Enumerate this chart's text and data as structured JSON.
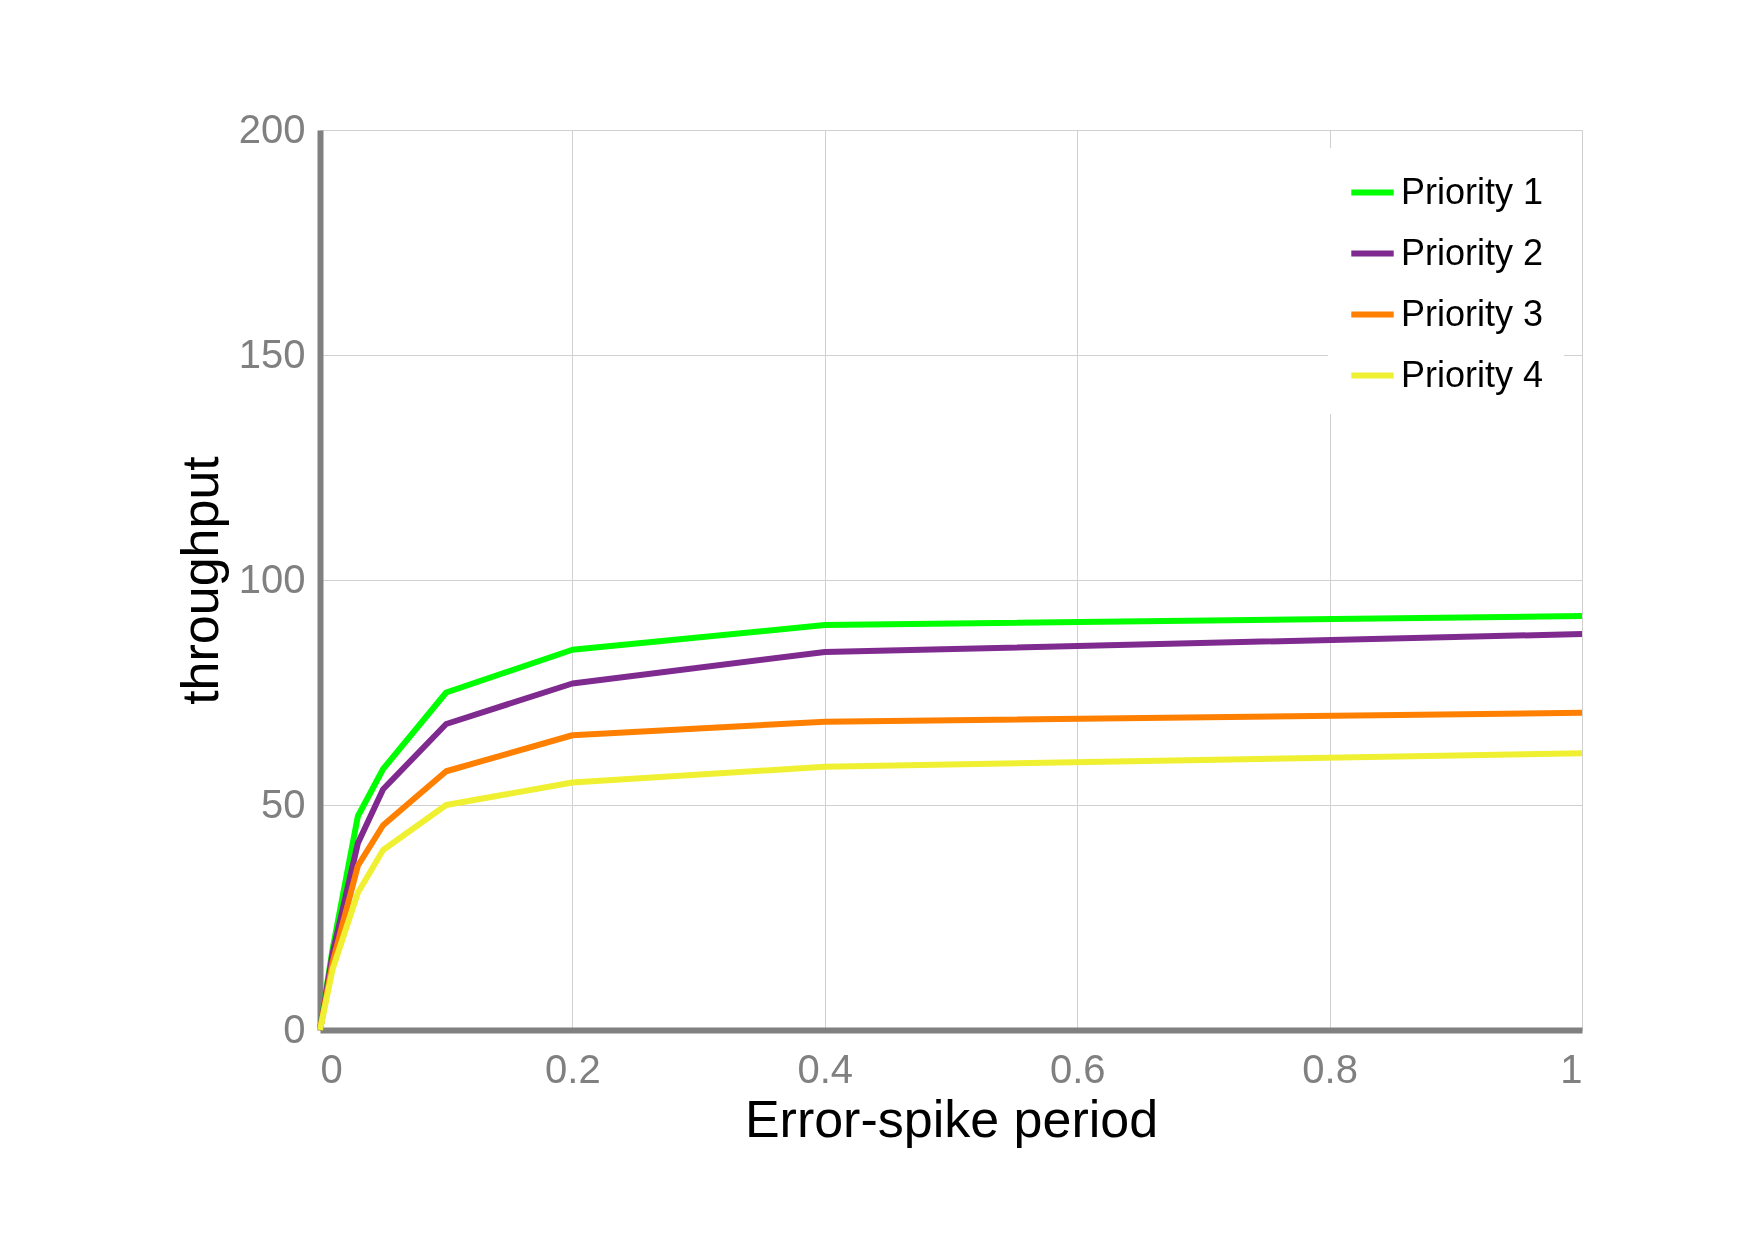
{
  "chart_data": {
    "type": "line",
    "xlabel": "Error-spike period",
    "ylabel": "throughput",
    "x": [
      0,
      0.01,
      0.03,
      0.05,
      0.1,
      0.2,
      0.4,
      1
    ],
    "series": [
      {
        "name": "Priority 1",
        "color": "#00ff00",
        "values": [
          0,
          18,
          47.5,
          58,
          75,
          84.5,
          90,
          92
        ]
      },
      {
        "name": "Priority 2",
        "color": "#7f2a8f",
        "values": [
          0,
          17,
          41.5,
          53.5,
          68,
          77,
          84,
          88
        ]
      },
      {
        "name": "Priority 3",
        "color": "#ff7f00",
        "values": [
          0,
          15,
          36.5,
          45.5,
          57.5,
          65.5,
          68.5,
          70.5
        ]
      },
      {
        "name": "Priority 4",
        "color": "#f0f032",
        "values": [
          0,
          13.5,
          30.5,
          40,
          50,
          55,
          58.5,
          61.5
        ]
      }
    ],
    "xlim": [
      0,
      1
    ],
    "xticks": [
      0,
      0.2,
      0.4,
      0.6,
      0.8,
      1
    ],
    "ylim": [
      0,
      200
    ],
    "yticks": [
      0,
      50,
      100,
      150,
      200
    ],
    "grid": true,
    "legend": "top right",
    "marker": "none",
    "line_style": "solid"
  }
}
